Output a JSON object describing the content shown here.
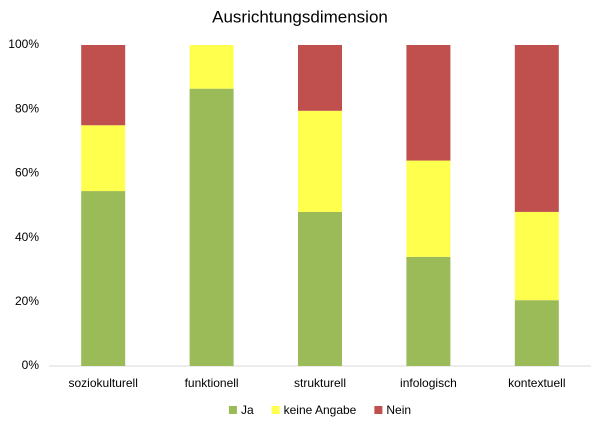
{
  "chart_data": {
    "type": "stacked_bar_100",
    "title": "Ausrichtungsdimension",
    "categories": [
      "soziokulturell",
      "funktionell",
      "strukturell",
      "infologisch",
      "kontextuell"
    ],
    "series": [
      {
        "name": "Ja",
        "color": "#9bbb59",
        "values": [
          54.5,
          86.4,
          48,
          34,
          20.5
        ]
      },
      {
        "name": "keine Angabe",
        "color": "#ffff4d",
        "values": [
          20.5,
          13.6,
          31.5,
          30,
          27.5
        ]
      },
      {
        "name": "Nein",
        "color": "#c0504d",
        "values": [
          25,
          0,
          20.5,
          36,
          52
        ]
      }
    ],
    "ylim": [
      0,
      100
    ],
    "yticks": [
      {
        "value": 0,
        "label": "0%"
      },
      {
        "value": 20,
        "label": "20%"
      },
      {
        "value": 40,
        "label": "40%"
      },
      {
        "value": 60,
        "label": "60%"
      },
      {
        "value": 80,
        "label": "80%"
      },
      {
        "value": 100,
        "label": "100%"
      }
    ],
    "grid": false,
    "legend": "bottom"
  }
}
